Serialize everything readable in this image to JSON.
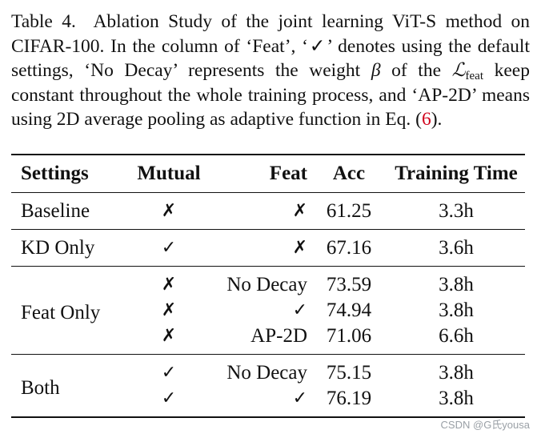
{
  "caption": {
    "label": "Table 4.",
    "part1": "Ablation Study of the joint learning ViT-S method on CIFAR-100. In the column of ‘Feat’, ‘✓’ denotes using the default settings, ‘No Decay’ represents the weight ",
    "beta": "β",
    "part2": " of the ",
    "loss_symbol": "ℒ",
    "loss_sub": "feat",
    "part3": " keep constant throughout the whole training process, and ‘AP-2D’ means using 2D average pooling as adaptive function in Eq. (",
    "eq_ref": "6",
    "part4": ")."
  },
  "table": {
    "headers": [
      "Settings",
      "Mutual",
      "Feat",
      "Acc",
      "Training Time"
    ],
    "groups": [
      {
        "setting": "Baseline",
        "rows": [
          {
            "mutual": "✗",
            "feat": "✗",
            "acc": "61.25",
            "time": "3.3h"
          }
        ]
      },
      {
        "setting": "KD Only",
        "rows": [
          {
            "mutual": "✓",
            "feat": "✗",
            "acc": "67.16",
            "time": "3.6h"
          }
        ]
      },
      {
        "setting": "Feat Only",
        "rows": [
          {
            "mutual": "✗",
            "feat": "No Decay",
            "acc": "73.59",
            "time": "3.8h"
          },
          {
            "mutual": "✗",
            "feat": "✓",
            "acc": "74.94",
            "time": "3.8h"
          },
          {
            "mutual": "✗",
            "feat": "AP-2D",
            "acc": "71.06",
            "time": "6.6h"
          }
        ]
      },
      {
        "setting": "Both",
        "rows": [
          {
            "mutual": "✓",
            "feat": "No Decay",
            "acc": "75.15",
            "time": "3.8h"
          },
          {
            "mutual": "✓",
            "feat": "✓",
            "acc": "76.19",
            "time": "3.8h"
          }
        ]
      }
    ]
  },
  "watermark": "CSDN @G氏yousa"
}
